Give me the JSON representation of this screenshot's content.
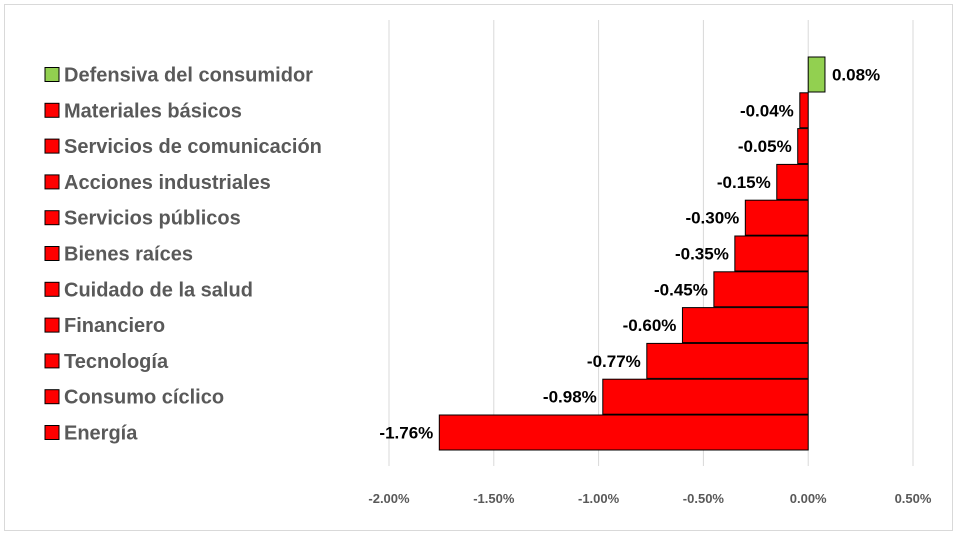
{
  "chart_data": {
    "type": "bar",
    "orientation": "horizontal",
    "title": "",
    "xlabel": "",
    "ylabel": "",
    "xlim": [
      -2.0,
      0.5
    ],
    "x_ticks": [
      -2.0,
      -1.5,
      -1.0,
      -0.5,
      0.0,
      0.5
    ],
    "x_tick_labels": [
      "-2.00%",
      "-1.50%",
      "-1.00%",
      "-0.50%",
      "0.00%",
      "0.50%"
    ],
    "grid": "vertical",
    "legend_position": "left",
    "categories": [
      "Defensiva del consumidor",
      "Materiales básicos",
      "Servicios de comunicación",
      "Acciones industriales",
      "Servicios públicos",
      "Bienes raíces",
      "Cuidado de la salud",
      "Financiero",
      "Tecnología",
      "Consumo cíclico",
      "Energía"
    ],
    "values": [
      0.08,
      -0.04,
      -0.05,
      -0.15,
      -0.3,
      -0.35,
      -0.45,
      -0.6,
      -0.77,
      -0.98,
      -1.76
    ],
    "value_labels": [
      "0.08%",
      "-0.04%",
      "-0.05%",
      "-0.15%",
      "-0.30%",
      "-0.35%",
      "-0.45%",
      "-0.60%",
      "-0.77%",
      "-0.98%",
      "-1.76%"
    ],
    "colors": {
      "positive": "#92d050",
      "negative": "#ff0000",
      "border": "#000000",
      "grid": "#d9d9d9",
      "legend_text": "#595959",
      "tick_text": "#595959"
    }
  }
}
